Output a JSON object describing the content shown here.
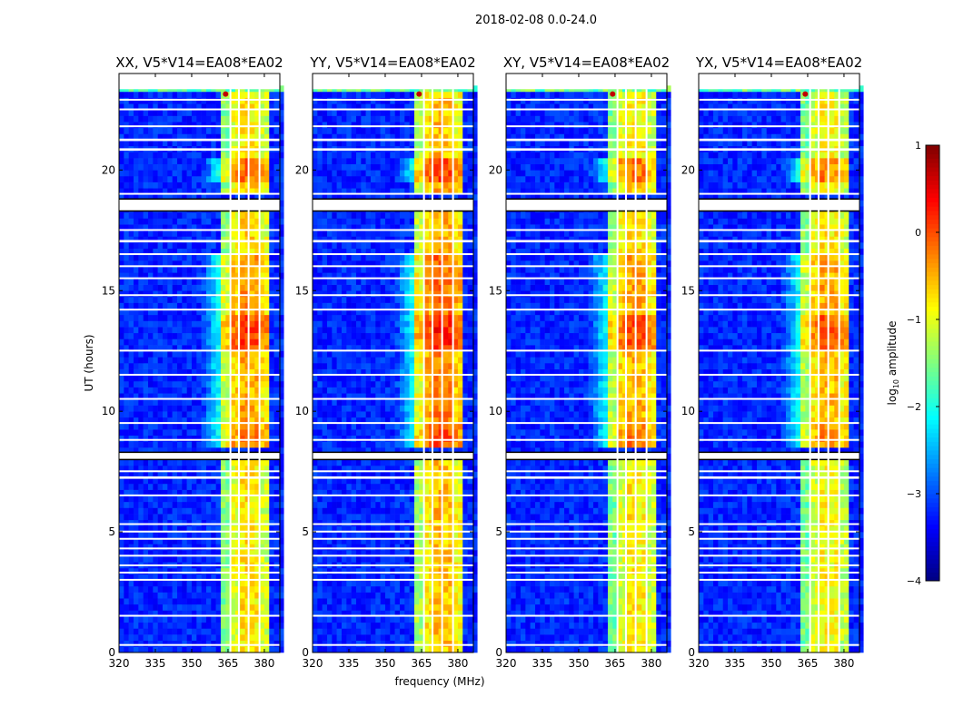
{
  "chart_data": {
    "type": "heatmap",
    "title": "2018-02-08 0.0-24.0",
    "xlabel": "frequency (MHz)",
    "ylabel": "UT (hours)",
    "xlim": [
      320,
      386.4
    ],
    "ylim": [
      0,
      24
    ],
    "data_time_max": 23.35,
    "xticks": [
      320,
      335,
      350,
      365,
      380
    ],
    "yticks": [
      0,
      5,
      10,
      15,
      20
    ],
    "colormap": "jet",
    "colorbar": {
      "label": "log10 amplitude",
      "label_main": "log",
      "label_sub": "10",
      "label_rest": " amplitude",
      "vmin": -4,
      "vmax": 1,
      "ticks": [
        1,
        0,
        -1,
        -2,
        -3,
        -4
      ],
      "tick_labels": [
        "1",
        "0",
        "−1",
        "−2",
        "−3",
        "−4"
      ]
    },
    "background_level": -3.2,
    "band_mhz": [
      362,
      382
    ],
    "band_edge_ramp_mhz": [
      354,
      362
    ],
    "subband_offsets": [
      {
        "f0": 362,
        "f1": 366,
        "offset": -0.6
      },
      {
        "f0": 366,
        "f1": 370,
        "offset": -0.1
      },
      {
        "f0": 370,
        "f1": 374,
        "offset": 0.15
      },
      {
        "f0": 374,
        "f1": 378,
        "offset": 0.1
      },
      {
        "f0": 378,
        "f1": 382,
        "offset": -0.2
      }
    ],
    "flagged_channels_mhz": [
      366,
      369.5,
      373.5,
      378
    ],
    "flagged_time_ranges_h": [
      [
        8.0,
        8.3
      ],
      [
        18.3,
        18.8
      ],
      [
        0.3,
        0.35
      ],
      [
        1.5,
        1.56
      ],
      [
        3.0,
        3.05
      ],
      [
        3.3,
        3.35
      ],
      [
        3.6,
        3.65
      ],
      [
        4.0,
        4.05
      ],
      [
        4.3,
        4.35
      ],
      [
        4.7,
        4.75
      ],
      [
        5.0,
        5.05
      ],
      [
        5.3,
        5.36
      ],
      [
        6.5,
        6.55
      ],
      [
        7.2,
        7.3
      ],
      [
        7.5,
        7.55
      ],
      [
        8.8,
        8.85
      ],
      [
        9.5,
        9.55
      ],
      [
        10.5,
        10.55
      ],
      [
        11.5,
        11.55
      ],
      [
        12.5,
        12.55
      ],
      [
        14.2,
        14.25
      ],
      [
        14.8,
        14.85
      ],
      [
        15.5,
        15.55
      ],
      [
        16.0,
        16.05
      ],
      [
        16.5,
        16.55
      ],
      [
        17.0,
        17.1
      ],
      [
        17.5,
        17.55
      ],
      [
        19.0,
        19.05
      ],
      [
        20.8,
        20.9
      ],
      [
        21.2,
        21.3
      ],
      [
        21.8,
        21.85
      ],
      [
        22.5,
        22.55
      ],
      [
        22.9,
        22.95
      ]
    ],
    "band_activity": [
      {
        "t0": 0,
        "t1": 8.0,
        "level": -0.9
      },
      {
        "t0": 8.3,
        "t1": 9.5,
        "level": -0.35
      },
      {
        "t0": 9.5,
        "t1": 12.3,
        "level": -0.6
      },
      {
        "t0": 12.3,
        "t1": 14.0,
        "level": -0.1
      },
      {
        "t0": 14.0,
        "t1": 16.5,
        "level": -0.5
      },
      {
        "t0": 16.5,
        "t1": 18.3,
        "level": -0.8
      },
      {
        "t0": 18.8,
        "t1": 19.5,
        "level": -0.8
      },
      {
        "t0": 19.5,
        "t1": 20.5,
        "level": -0.3
      },
      {
        "t0": 20.5,
        "t1": 23.35,
        "level": -0.9
      }
    ],
    "panels": [
      {
        "title": "XX, V5*V14=EA08*EA02",
        "level_offset": 0.0
      },
      {
        "title": "YY, V5*V14=EA08*EA02",
        "level_offset": 0.2
      },
      {
        "title": "XY, V5*V14=EA08*EA02",
        "level_offset": -0.05
      },
      {
        "title": "YX, V5*V14=EA08*EA02",
        "level_offset": -0.1
      }
    ]
  }
}
